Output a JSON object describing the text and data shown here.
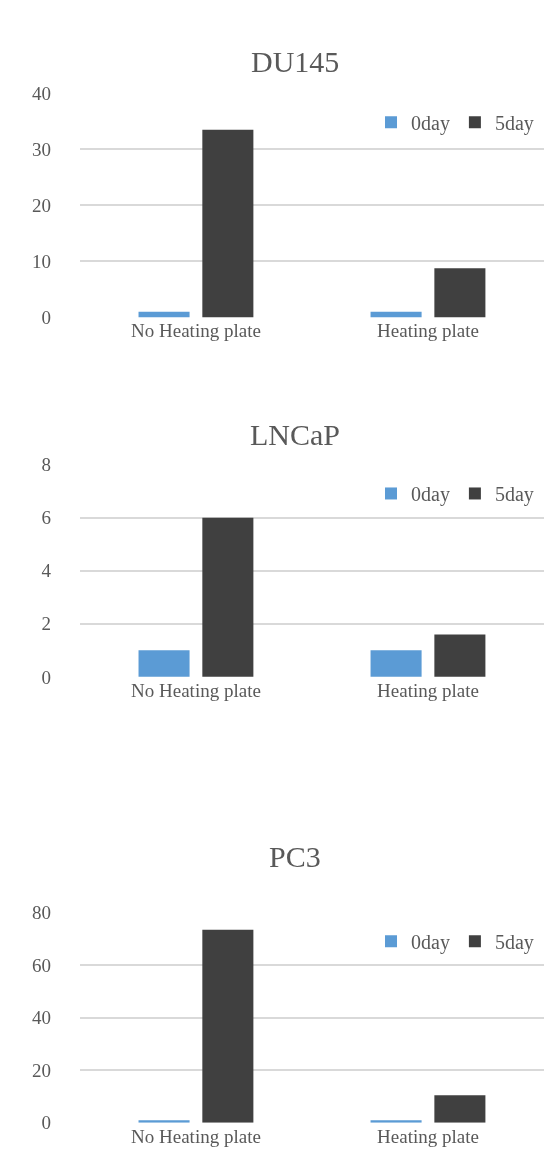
{
  "chart_data": [
    {
      "type": "bar",
      "title": "DU145",
      "categories": [
        "No Heating plate",
        "Heating plate"
      ],
      "series": [
        {
          "name": "0day",
          "color": "#5b9bd5",
          "values": [
            1,
            1
          ]
        },
        {
          "name": "5day",
          "color": "#404040",
          "values": [
            33.5,
            8.8
          ]
        }
      ],
      "ylim": [
        0,
        40
      ],
      "yticks": [
        0,
        10,
        20,
        30,
        40
      ],
      "grid": "y",
      "legend": "top right"
    },
    {
      "type": "bar",
      "title": "LNCaP",
      "categories": [
        "No Heating plate",
        "Heating plate"
      ],
      "series": [
        {
          "name": "0day",
          "color": "#5b9bd5",
          "values": [
            1,
            1
          ]
        },
        {
          "name": "5day",
          "color": "#404040",
          "values": [
            6,
            1.6
          ]
        }
      ],
      "ylim": [
        0,
        8
      ],
      "yticks": [
        0,
        2,
        4,
        6,
        8
      ],
      "grid": "y",
      "legend": "top right"
    },
    {
      "type": "bar",
      "title": "PC3",
      "categories": [
        "No Heating plate",
        "Heating plate"
      ],
      "series": [
        {
          "name": "0day",
          "color": "#5b9bd5",
          "values": [
            1,
            1
          ]
        },
        {
          "name": "5day",
          "color": "#404040",
          "values": [
            73.5,
            10.5
          ]
        }
      ],
      "ylim": [
        0,
        80
      ],
      "yticks": [
        0,
        20,
        40,
        60,
        80
      ],
      "grid": "y",
      "legend": "top right"
    }
  ]
}
